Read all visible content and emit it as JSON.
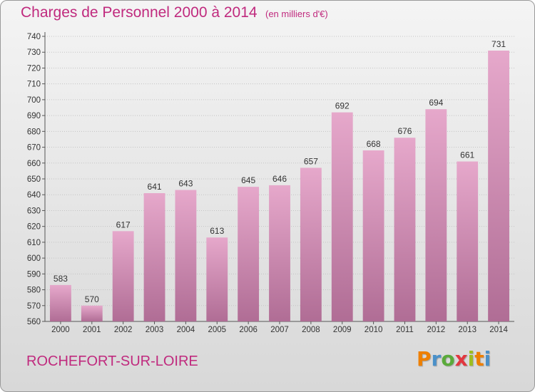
{
  "header": {
    "title": "Charges de Personnel 2000 à 2014",
    "subtitle": "(en milliers d'€)"
  },
  "footer": {
    "commune": "ROCHEFORT-SUR-LOIRE",
    "brand": "Proxiti",
    "brand_colors": [
      "#ee7f00",
      "#4a90c9",
      "#5aaa3a",
      "#e2373f",
      "#9dbe1f",
      "#ee7f00",
      "#4a90c9"
    ]
  },
  "chart_data": {
    "type": "bar",
    "title": "Charges de Personnel 2000 à 2014",
    "subtitle": "(en milliers d'€)",
    "categories": [
      "2000",
      "2001",
      "2002",
      "2003",
      "2004",
      "2005",
      "2006",
      "2007",
      "2008",
      "2009",
      "2010",
      "2011",
      "2012",
      "2013",
      "2014"
    ],
    "values": [
      583,
      570,
      617,
      641,
      643,
      613,
      645,
      646,
      657,
      692,
      668,
      676,
      694,
      661,
      731
    ],
    "ylim": [
      560,
      740
    ],
    "yticks": [
      560,
      570,
      580,
      590,
      600,
      610,
      620,
      630,
      640,
      650,
      660,
      670,
      680,
      690,
      700,
      710,
      720,
      730,
      740
    ],
    "grid": true,
    "bar_color": "#d9769f",
    "legend": "none"
  }
}
